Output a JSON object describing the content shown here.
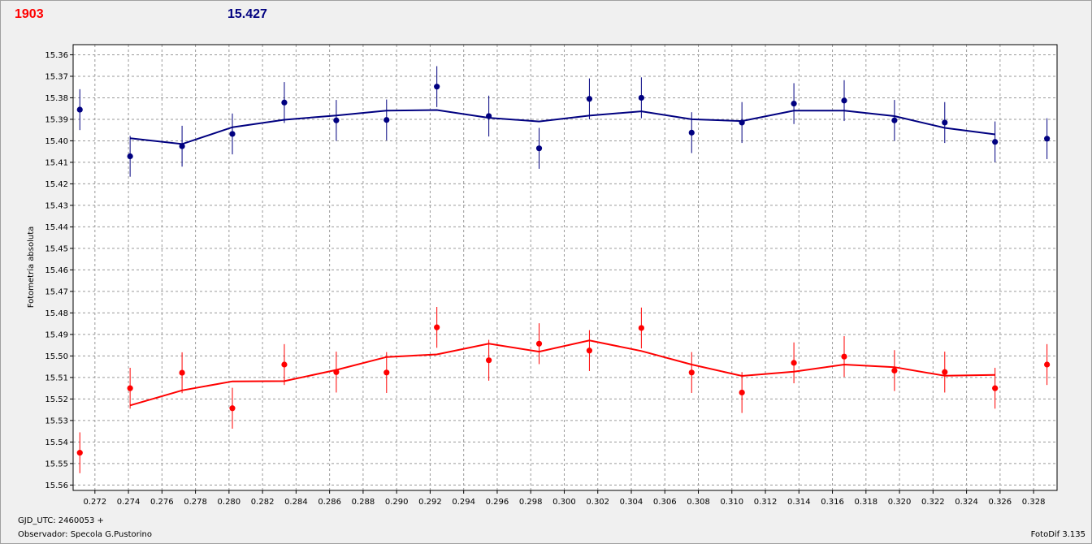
{
  "header": {
    "count": "1903",
    "magnitude": "15.427"
  },
  "footer": {
    "gjd": "GJD_UTC: 2460053 +",
    "observer": "Observador: Specola G.Pustorino",
    "version": "FotoDif 3.135"
  },
  "chart_data": {
    "type": "scatter",
    "ylabel": "Fotometría absoluta",
    "xlabel": "",
    "xlim": [
      0.2707,
      0.3294
    ],
    "ylim": [
      15.5625,
      15.3553
    ],
    "y_inverted": true,
    "grid": true,
    "x_ticks": [
      "0.272",
      "0.274",
      "0.276",
      "0.278",
      "0.280",
      "0.282",
      "0.284",
      "0.286",
      "0.288",
      "0.290",
      "0.292",
      "0.294",
      "0.296",
      "0.298",
      "0.300",
      "0.302",
      "0.304",
      "0.306",
      "0.308",
      "0.310",
      "0.312",
      "0.314",
      "0.316",
      "0.318",
      "0.320",
      "0.322",
      "0.324",
      "0.326",
      "0.328"
    ],
    "y_ticks": [
      "15.36",
      "15.37",
      "15.38",
      "15.39",
      "15.40",
      "15.41",
      "15.42",
      "15.43",
      "15.44",
      "15.45",
      "15.46",
      "15.47",
      "15.48",
      "15.49",
      "15.50",
      "15.51",
      "15.52",
      "15.53",
      "15.54",
      "15.55",
      "15.56"
    ],
    "x": [
      0.2711,
      0.2741,
      0.2772,
      0.2802,
      0.2833,
      0.2864,
      0.2894,
      0.2924,
      0.2955,
      0.2985,
      0.3015,
      0.3046,
      0.3076,
      0.3106,
      0.3137,
      0.3167,
      0.3197,
      0.3227,
      0.3257,
      0.3288
    ],
    "series": [
      {
        "color": "#000080",
        "points": [
          15.3855,
          15.4072,
          15.4025,
          15.3968,
          15.3822,
          15.3905,
          15.3903,
          15.3748,
          15.3885,
          15.4035,
          15.3805,
          15.38,
          15.3962,
          15.3915,
          15.3827,
          15.3813,
          15.3905,
          15.3915,
          15.4005,
          15.399
        ],
        "errors": 0.0095,
        "line_x": [
          0.2741,
          0.2772,
          0.2802,
          0.2833,
          0.2864,
          0.2894,
          0.2924,
          0.2955,
          0.2985,
          0.3015,
          0.3046,
          0.3076,
          0.3106,
          0.3137,
          0.3167,
          0.3197,
          0.3227,
          0.3257
        ],
        "line": [
          15.3988,
          15.4015,
          15.3937,
          15.3902,
          15.3882,
          15.386,
          15.3857,
          15.3893,
          15.391,
          15.3883,
          15.3863,
          15.39,
          15.3908,
          15.386,
          15.386,
          15.3885,
          15.394,
          15.397
        ]
      },
      {
        "color": "#ff0000",
        "points": [
          15.545,
          15.515,
          15.5078,
          15.5243,
          15.504,
          15.5075,
          15.5077,
          15.4867,
          15.502,
          15.4943,
          15.4975,
          15.487,
          15.5077,
          15.517,
          15.5032,
          15.5003,
          15.5068,
          15.5075,
          15.515,
          15.504
        ],
        "errors": 0.0095,
        "line_x": [
          0.2741,
          0.2772,
          0.2802,
          0.2833,
          0.2864,
          0.2894,
          0.2924,
          0.2955,
          0.2985,
          0.3015,
          0.3046,
          0.3076,
          0.3106,
          0.3137,
          0.3167,
          0.3197,
          0.3227,
          0.3257
        ],
        "line": [
          15.523,
          15.516,
          15.5118,
          15.5117,
          15.5065,
          15.5005,
          15.4993,
          15.4943,
          15.498,
          15.4928,
          15.4977,
          15.504,
          15.5093,
          15.5073,
          15.504,
          15.5052,
          15.5092,
          15.5088
        ]
      }
    ]
  }
}
